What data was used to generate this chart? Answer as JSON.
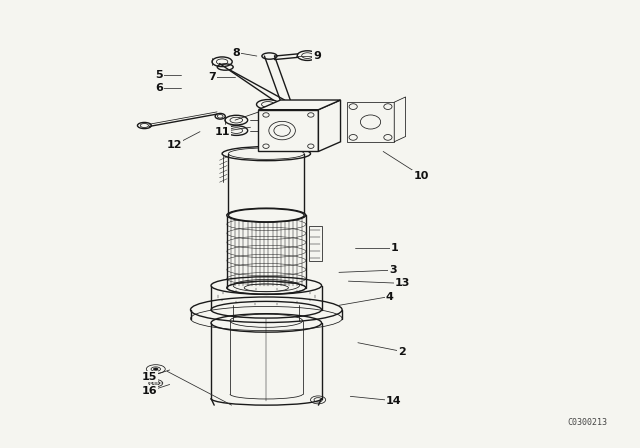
{
  "background_color": "#f5f5f0",
  "diagram_color": "#1a1a1a",
  "fig_width": 6.4,
  "fig_height": 4.48,
  "watermark": "C0300213",
  "lc": "#2a2a2a",
  "label_fc": "#e8e8e0",
  "label_ec": "#1a1a1a",
  "parts_labels": {
    "1": [
      0.618,
      0.445,
      0.555,
      0.445
    ],
    "2": [
      0.63,
      0.21,
      0.56,
      0.23
    ],
    "3": [
      0.615,
      0.395,
      0.53,
      0.39
    ],
    "4": [
      0.61,
      0.335,
      0.53,
      0.315
    ],
    "5": [
      0.245,
      0.84,
      0.28,
      0.84
    ],
    "6": [
      0.245,
      0.81,
      0.28,
      0.81
    ],
    "7": [
      0.33,
      0.835,
      0.365,
      0.835
    ],
    "8": [
      0.368,
      0.89,
      0.4,
      0.882
    ],
    "9": [
      0.495,
      0.882,
      0.462,
      0.882
    ],
    "10": [
      0.66,
      0.61,
      0.6,
      0.665
    ],
    "11": [
      0.345,
      0.71,
      0.39,
      0.72
    ],
    "12": [
      0.27,
      0.68,
      0.31,
      0.71
    ],
    "13": [
      0.63,
      0.365,
      0.545,
      0.37
    ],
    "14": [
      0.617,
      0.098,
      0.548,
      0.108
    ],
    "15": [
      0.23,
      0.153,
      0.262,
      0.168
    ],
    "16": [
      0.23,
      0.12,
      0.262,
      0.135
    ]
  }
}
